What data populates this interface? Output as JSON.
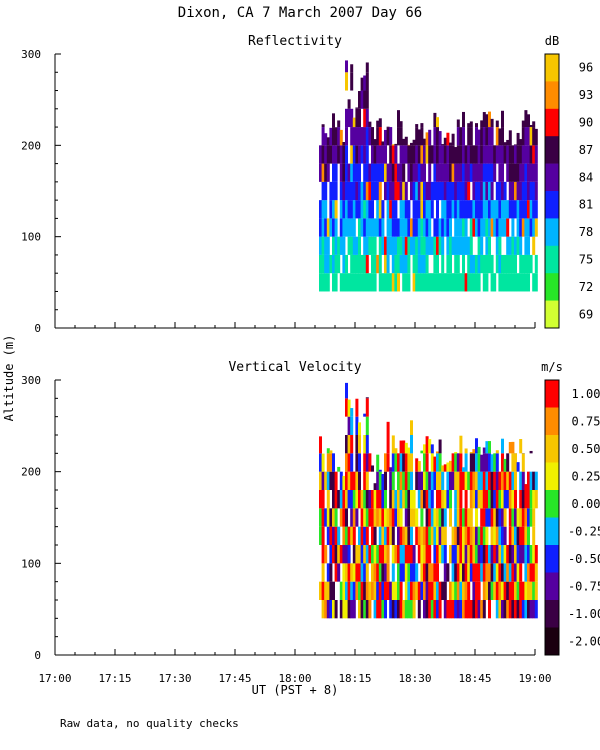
{
  "title": "Dixon, CA  7 March 2007  Day  66",
  "ylabel": "Altitude (m)",
  "xlabel": "UT  (PST + 8)",
  "footnote": "Raw data, no quality checks",
  "x_ticks": [
    "17:00",
    "17:15",
    "17:30",
    "17:45",
    "18:00",
    "18:15",
    "18:30",
    "18:45",
    "19:00"
  ],
  "chart_data": [
    {
      "type": "heatmap",
      "title": "Reflectivity",
      "x_range_hours": [
        17.0,
        19.0
      ],
      "ylim": [
        0,
        300
      ],
      "y_ticks": [
        0,
        100,
        200,
        300
      ],
      "data_extent": {
        "x_start": "18:06",
        "x_end": "19:00",
        "altitude_min": 40,
        "altitude_max": 300
      },
      "colorbar": {
        "unit": "dB",
        "labels": [
          "96",
          "93",
          "90",
          "87",
          "84",
          "81",
          "78",
          "75",
          "72",
          "69"
        ],
        "colors": [
          "#f7c600",
          "#ff8c00",
          "#ff0000",
          "#3a0044",
          "#5500a0",
          "#1020ff",
          "#00b4ff",
          "#00e6a0",
          "#28e628",
          "#d2ff32"
        ]
      },
      "dominant_colors_low_to_high_altitude": [
        "#00e6a0",
        "#00b4ff",
        "#1020ff",
        "#5500a0",
        "#3a0044"
      ]
    },
    {
      "type": "heatmap",
      "title": "Vertical Velocity",
      "x_range_hours": [
        17.0,
        19.0
      ],
      "ylim": [
        0,
        300
      ],
      "y_ticks": [
        0,
        100,
        200,
        300
      ],
      "data_extent": {
        "x_start": "18:06",
        "x_end": "19:00",
        "altitude_min": 40,
        "altitude_max": 300
      },
      "colorbar": {
        "unit": "m/s",
        "labels": [
          "1.00",
          "0.75",
          "0.50",
          "0.25",
          "0.00",
          "-0.25",
          "-0.50",
          "-0.75",
          "-1.00",
          "-2.00"
        ],
        "colors": [
          "#ff0000",
          "#ff8c00",
          "#f7c600",
          "#f0f000",
          "#28e628",
          "#00b4ff",
          "#1020ff",
          "#5500a0",
          "#3a0044",
          "#1a0010"
        ]
      }
    }
  ]
}
